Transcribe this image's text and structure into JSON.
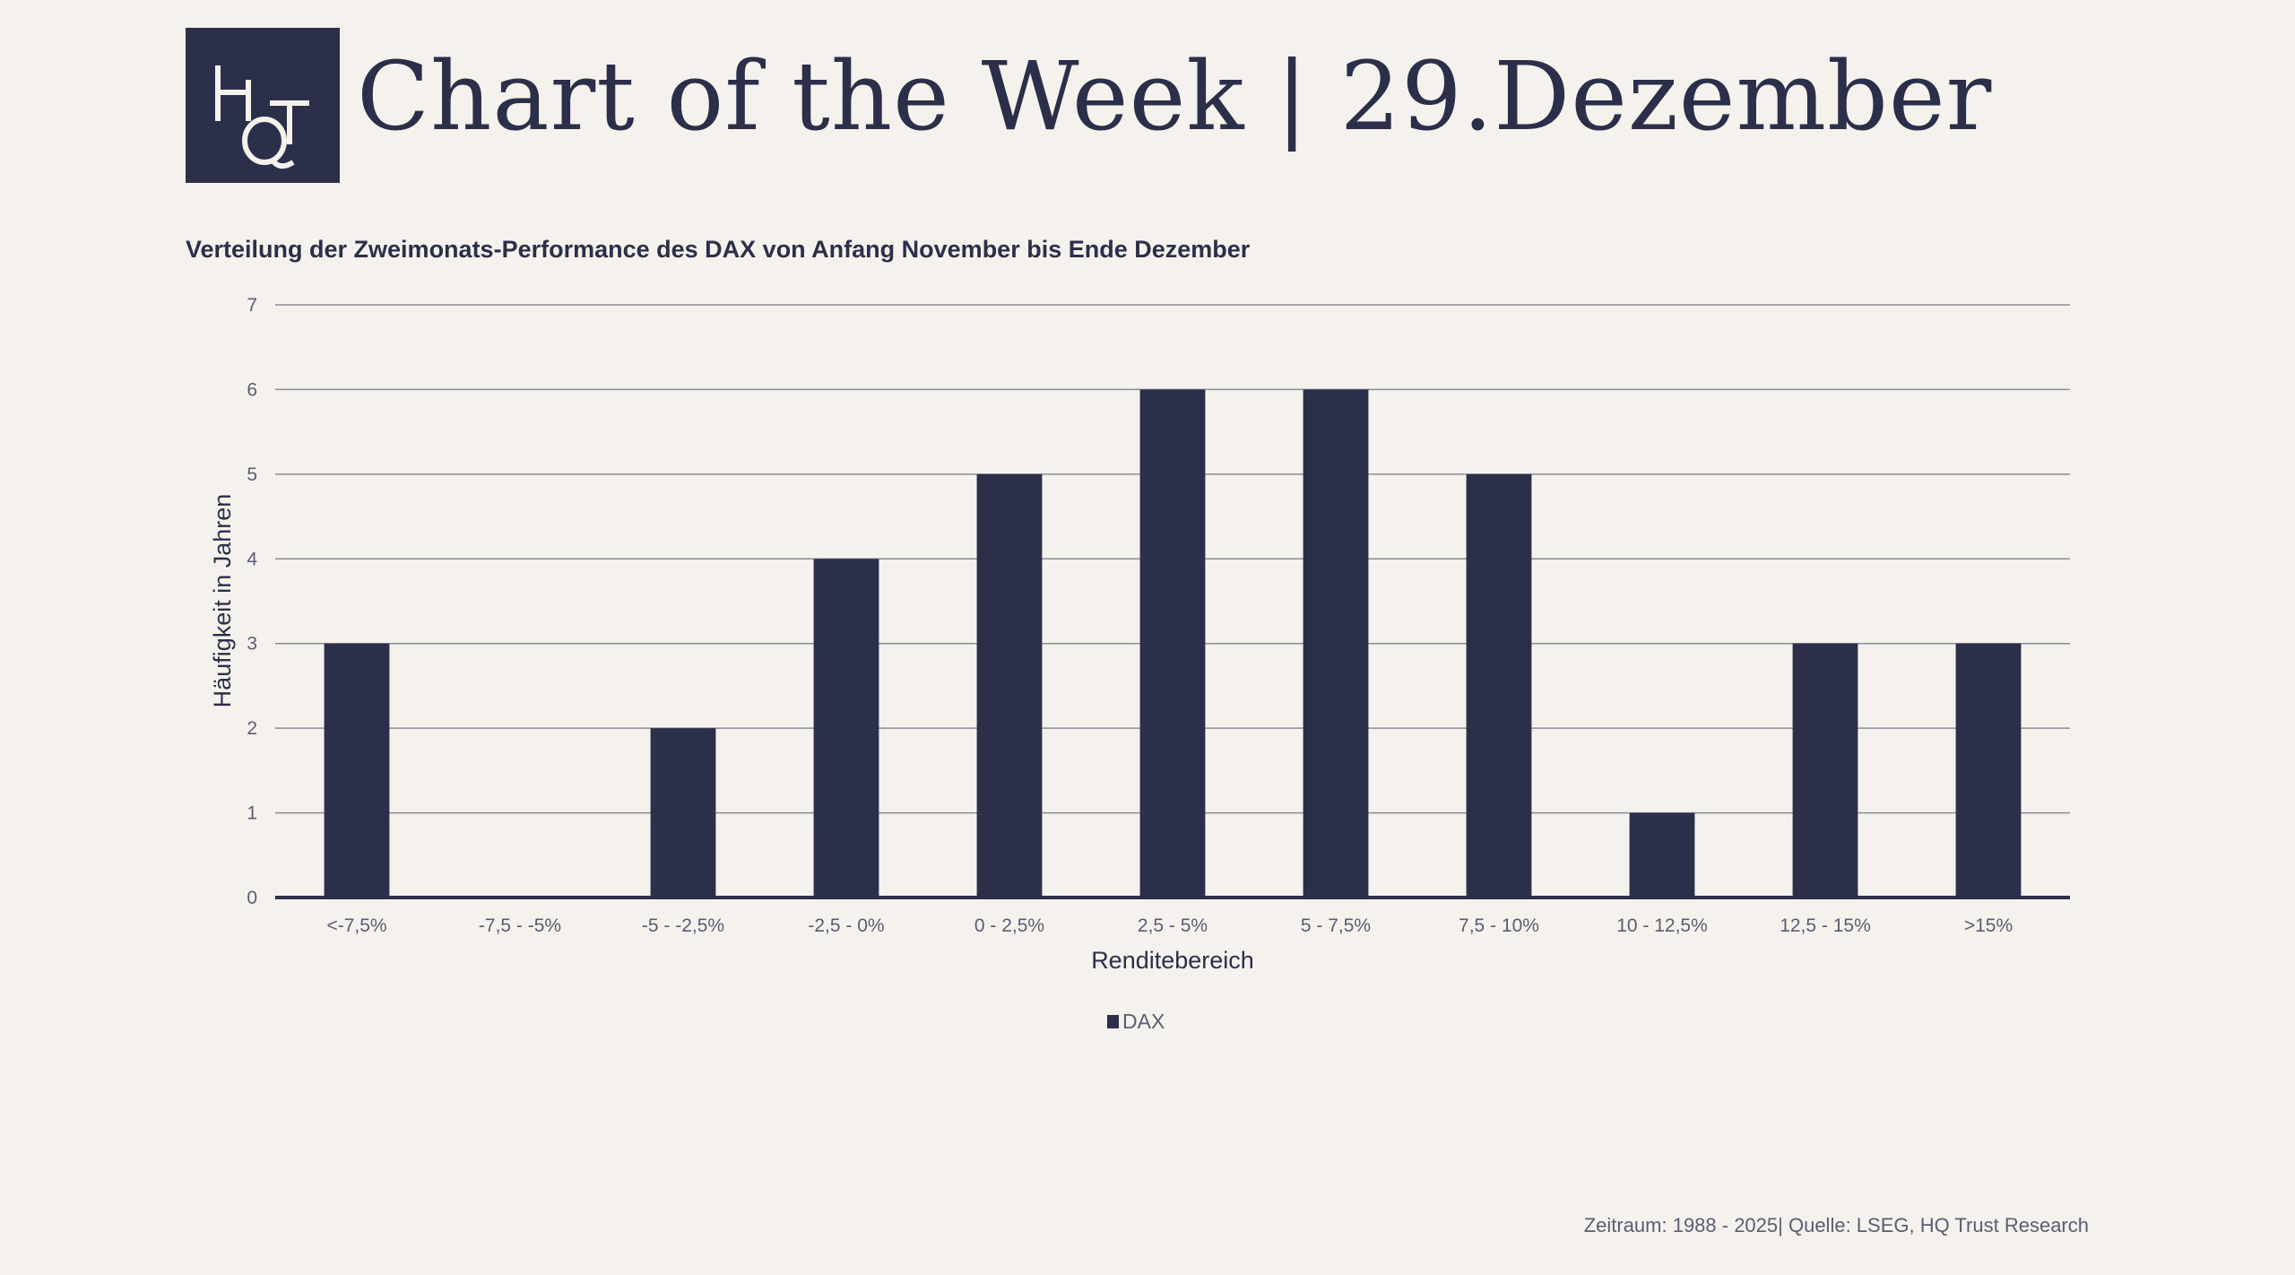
{
  "header": {
    "logo_text": "HQT",
    "title": "Chart of the Week | 29.Dezember"
  },
  "chart_data": {
    "type": "bar",
    "title": "Verteilung der Zweimonats-Performance des DAX von Anfang November bis Ende Dezember",
    "xlabel": "Renditebereich",
    "ylabel": "Häufigkeit in Jahren",
    "categories": [
      "<-7,5%",
      "-7,5 - -5%",
      "-5 - -2,5%",
      "-2,5 - 0%",
      "0 - 2,5%",
      "2,5 - 5%",
      "5 - 7,5%",
      "7,5 - 10%",
      "10 - 12,5%",
      "12,5 - 15%",
      ">15%"
    ],
    "series": [
      {
        "name": "DAX",
        "values": [
          3,
          0,
          2,
          4,
          5,
          6,
          6,
          5,
          1,
          3,
          3
        ],
        "color": "#2b2f4a"
      }
    ],
    "ylim": [
      0,
      7
    ],
    "yticks": [
      0,
      1,
      2,
      3,
      4,
      5,
      6,
      7
    ],
    "grid": true,
    "legend_position": "bottom-center"
  },
  "footer": {
    "source": "Zeitraum: 1988 - 2025| Quelle: LSEG, HQ Trust Research"
  }
}
